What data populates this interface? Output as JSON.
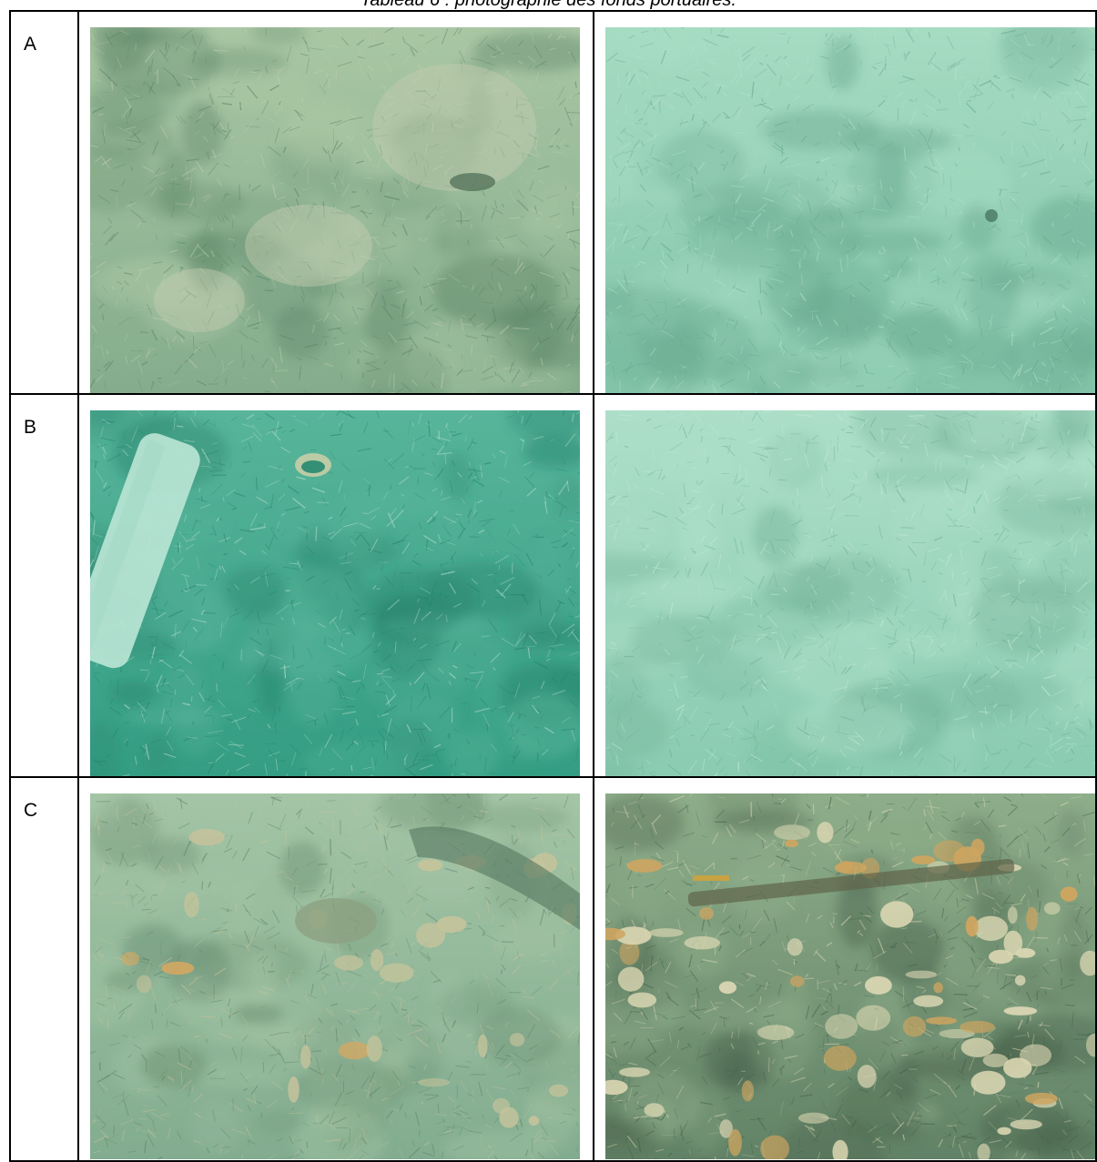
{
  "caption": "Tableau 6 : photographie des fonds portuaires.",
  "rows": [
    {
      "label": "A",
      "photos": [
        {
          "scene": "algae-covered-rocks",
          "palette": {
            "base": "#7fa98a",
            "light": "#a9c7a3",
            "dark": "#4f7a5e",
            "accent": "#c7cfb1"
          }
        },
        {
          "scene": "algae-sand-flat",
          "palette": {
            "base": "#7fc1a6",
            "light": "#a6dcc2",
            "dark": "#5e9f86",
            "accent": "#b9e4cf"
          }
        }
      ]
    },
    {
      "label": "B",
      "photos": [
        {
          "scene": "seabed-with-debris",
          "palette": {
            "base": "#2f9a80",
            "light": "#58b59a",
            "dark": "#1f7a63",
            "accent": "#cde8d8"
          }
        },
        {
          "scene": "fibrous-algae-flat",
          "palette": {
            "base": "#86c9b0",
            "light": "#aee0c9",
            "dark": "#66a88e",
            "accent": "#c8ecda"
          }
        }
      ]
    },
    {
      "label": "C",
      "photos": [
        {
          "scene": "rubble-slope",
          "palette": {
            "base": "#7ea98d",
            "light": "#a4c5a6",
            "dark": "#55795e",
            "accent": "#c9c39a"
          }
        },
        {
          "scene": "pebbles-and-rubble",
          "palette": {
            "base": "#5d7d62",
            "light": "#8fae8a",
            "dark": "#3c5540",
            "accent": "#e6dcb8"
          }
        }
      ]
    }
  ]
}
